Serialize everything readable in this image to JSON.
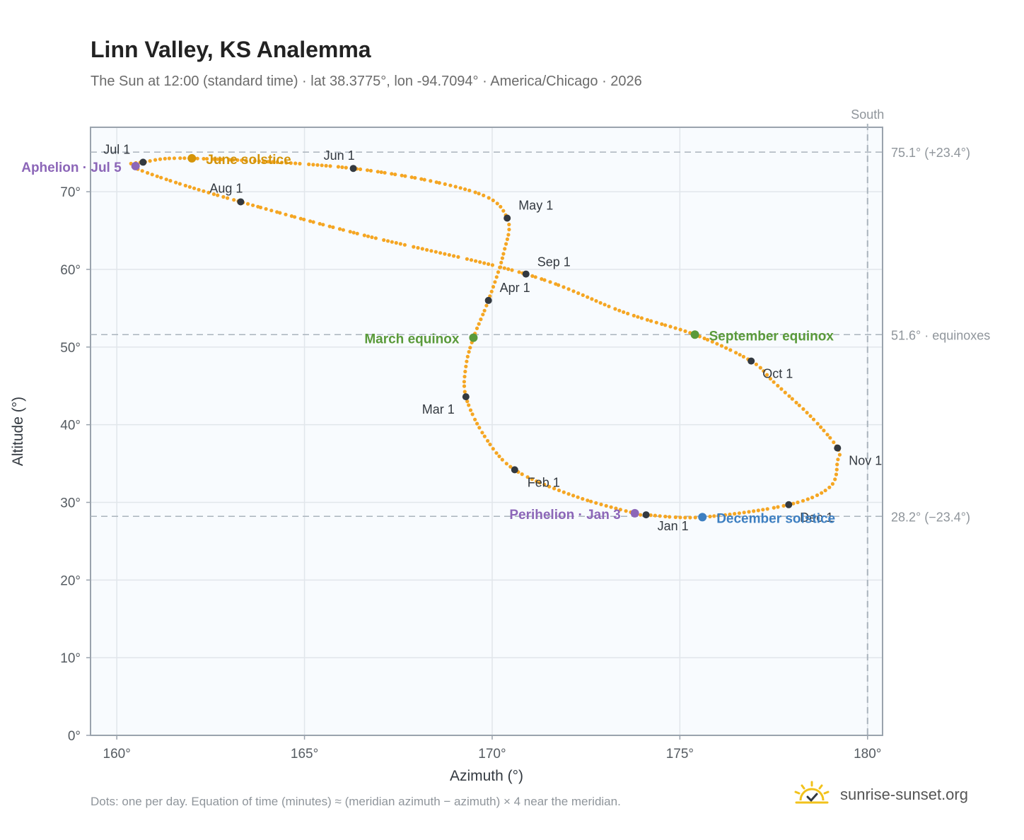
{
  "title": "Linn Valley, KS Analemma",
  "subtitle": "The Sun at 12:00 (standard time) · lat 38.3775°, lon -94.7094° · America/Chicago · 2026",
  "footnote": "Dots: one per day. Equation of time (minutes) ≈ (meridian azimuth − azimuth) × 4 near the meridian.",
  "brand": {
    "text": "sunrise-sunset.org",
    "icon": "sun-check-logo-icon"
  },
  "colors": {
    "curve": "#f5a623",
    "month_marker": "#333940",
    "solstice_june": "#d4940a",
    "solstice_december": "#3d7fc1",
    "equinox": "#5a9a3a",
    "apsis": "#8c66b8",
    "plot_bg": "#f8fbfe",
    "grid": "#e1e6eb",
    "axis": "#9aa3ad",
    "reference_line": "#aab4bd"
  },
  "chart_data": {
    "type": "scatter",
    "xlabel": "Azimuth (°)",
    "ylabel": "Altitude (°)",
    "xlim": [
      159.3,
      180.4
    ],
    "ylim": [
      0,
      78.3
    ],
    "grid": true,
    "x_ticks": [
      160,
      165,
      170,
      175,
      180
    ],
    "x_tick_labels": [
      "160°",
      "165°",
      "170°",
      "175°",
      "180°"
    ],
    "y_ticks": [
      0,
      10,
      20,
      30,
      40,
      50,
      60,
      70
    ],
    "y_tick_labels": [
      "0°",
      "10°",
      "20°",
      "30°",
      "40°",
      "50°",
      "60°",
      "70°"
    ],
    "south_line": {
      "x": 180,
      "label": "South"
    },
    "reference_lines": [
      {
        "y": 75.1,
        "label": "75.1° (+23.4°)"
      },
      {
        "y": 51.6,
        "label": "51.6° · equinoxes"
      },
      {
        "y": 28.2,
        "label": "28.2° (−23.4°)"
      }
    ],
    "daily_series": {
      "name": "",
      "note": "one dot per day; path through the monthly points below",
      "path": [
        [
          174.1,
          28.4
        ],
        [
          175.6,
          28.1
        ],
        [
          177.9,
          29.7
        ],
        [
          179.0,
          32.0
        ],
        [
          179.2,
          35.3
        ],
        [
          179.2,
          37.0
        ],
        [
          178.5,
          41.0
        ],
        [
          177.5,
          45.5
        ],
        [
          176.9,
          48.2
        ],
        [
          175.4,
          51.6
        ],
        [
          173.5,
          54.5
        ],
        [
          170.9,
          59.4
        ],
        [
          166.5,
          64.5
        ],
        [
          163.3,
          68.7
        ],
        [
          161.5,
          71.3
        ],
        [
          160.4,
          73.3
        ],
        [
          160.7,
          73.8
        ],
        [
          162.0,
          74.3
        ],
        [
          166.3,
          73.0
        ],
        [
          169.5,
          70.0
        ],
        [
          170.4,
          66.6
        ],
        [
          170.3,
          62.0
        ],
        [
          169.9,
          56.0
        ],
        [
          169.5,
          51.2
        ],
        [
          169.3,
          47.5
        ],
        [
          169.3,
          43.6
        ],
        [
          169.8,
          38.5
        ],
        [
          170.6,
          34.2
        ],
        [
          172.2,
          30.8
        ],
        [
          173.8,
          28.6
        ],
        [
          174.1,
          28.4
        ]
      ]
    },
    "month_points": [
      {
        "label": "Jan 1",
        "x": 174.1,
        "y": 28.4
      },
      {
        "label": "Feb 1",
        "x": 170.6,
        "y": 34.2
      },
      {
        "label": "Mar 1",
        "x": 169.3,
        "y": 43.6
      },
      {
        "label": "Apr 1",
        "x": 169.9,
        "y": 56.0
      },
      {
        "label": "May 1",
        "x": 170.4,
        "y": 66.6
      },
      {
        "label": "Jun 1",
        "x": 166.3,
        "y": 73.0
      },
      {
        "label": "Jul 1",
        "x": 160.7,
        "y": 73.8
      },
      {
        "label": "Aug 1",
        "x": 163.3,
        "y": 68.7
      },
      {
        "label": "Sep 1",
        "x": 170.9,
        "y": 59.4
      },
      {
        "label": "Oct 1",
        "x": 176.9,
        "y": 48.2
      },
      {
        "label": "Nov 1",
        "x": 179.2,
        "y": 37.0
      },
      {
        "label": "Dec 1",
        "x": 177.9,
        "y": 29.7
      }
    ],
    "events": [
      {
        "label": "June solstice",
        "x": 162.0,
        "y": 74.3,
        "kind": "solstice_june"
      },
      {
        "label": "December solstice",
        "x": 175.6,
        "y": 28.1,
        "kind": "solstice_december"
      },
      {
        "label": "March equinox",
        "x": 169.5,
        "y": 51.2,
        "kind": "equinox"
      },
      {
        "label": "September equinox",
        "x": 175.4,
        "y": 51.6,
        "kind": "equinox"
      },
      {
        "label": "Aphelion · Jul 5",
        "x": 160.5,
        "y": 73.3,
        "kind": "apsis"
      },
      {
        "label": "Perihelion · Jan 3",
        "x": 173.8,
        "y": 28.6,
        "kind": "apsis"
      }
    ]
  }
}
